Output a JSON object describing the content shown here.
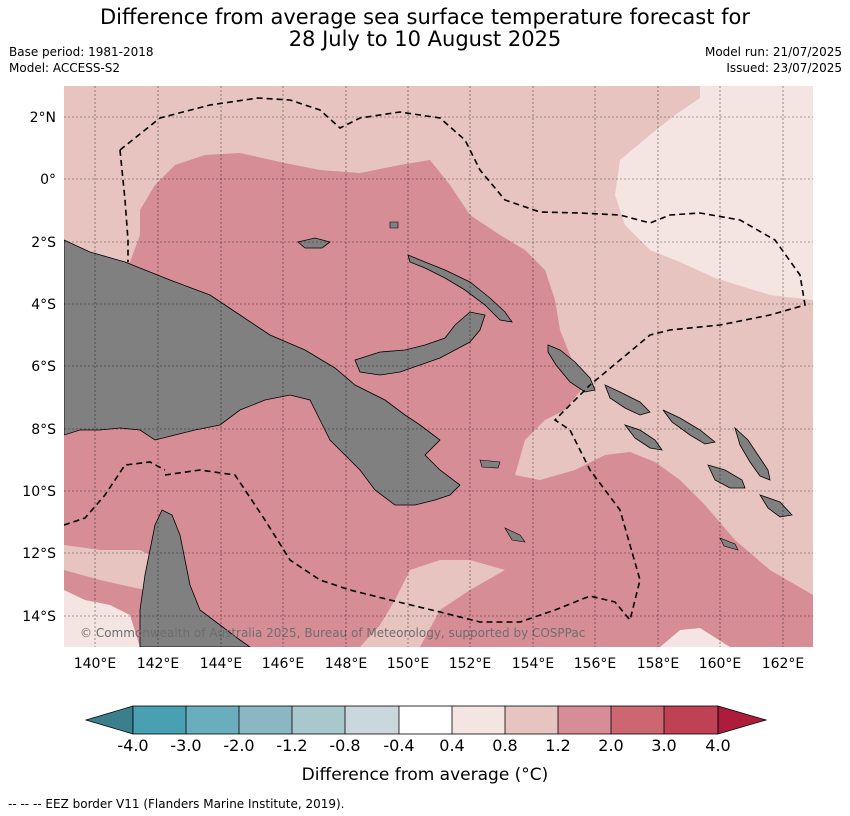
{
  "header": {
    "title_line1": "Difference from average sea surface temperature forecast for",
    "title_line2": "28 July to 10 August 2025",
    "base_period": "Base period: 1981-2018",
    "model": "Model: ACCESS-S2",
    "model_run": "Model run: 21/07/2025",
    "issued": "Issued: 23/07/2025"
  },
  "map": {
    "lat_labels": [
      "2°N",
      "0°",
      "2°S",
      "4°S",
      "6°S",
      "8°S",
      "10°S",
      "12°S",
      "14°S"
    ],
    "lon_labels": [
      "140°E",
      "142°E",
      "144°E",
      "146°E",
      "148°E",
      "150°E",
      "152°E",
      "154°E",
      "156°E",
      "158°E",
      "160°E",
      "162°E"
    ],
    "copyright": "© Commonwealth of Australia 2025, Bureau of Meteorology, supported by COSPPac",
    "land_color": "#808080",
    "eez_style": "dashed"
  },
  "legend": {
    "title": "Difference from average (°C)",
    "tick_labels": [
      "-4.0",
      "-3.0",
      "-2.0",
      "-1.2",
      "-0.8",
      "-0.4",
      "0.4",
      "0.8",
      "1.2",
      "2.0",
      "3.0",
      "4.0"
    ],
    "colors": [
      "#3c7f8c",
      "#4aa0b3",
      "#6aaebd",
      "#8bb7c3",
      "#a9c8cd",
      "#cad8de",
      "#ffffff",
      "#f4e4e2",
      "#e7c4c0",
      "#d68d96",
      "#cc6671",
      "#be4254",
      "#ad1c3a"
    ]
  },
  "footnote": "--  --  -- EEZ border V11 (Flanders Marine Institute, 2019)."
}
